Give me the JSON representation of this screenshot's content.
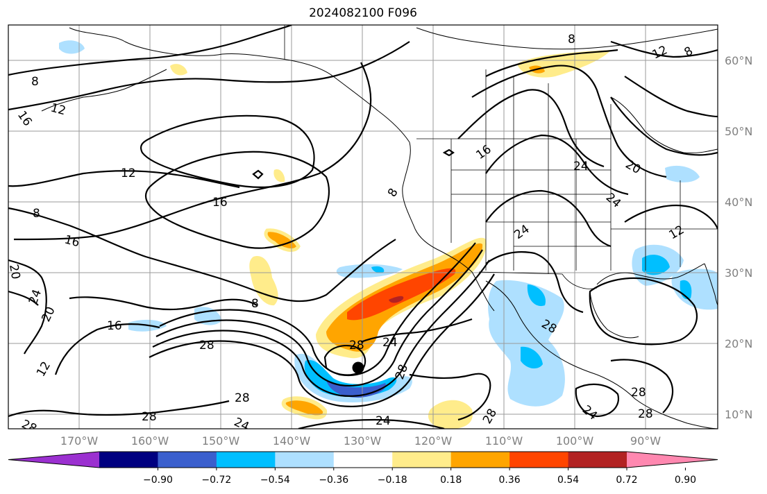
{
  "title": "2024082100 F096",
  "lat_labels": [
    "60°N",
    "50°N",
    "40°N",
    "30°N",
    "20°N",
    "10°N"
  ],
  "lon_labels": [
    "170°W",
    "160°W",
    "150°W",
    "140°W",
    "130°W",
    "120°W",
    "110°W",
    "100°W",
    "90°W"
  ],
  "colorbar": {
    "ticks": [
      "−0.90",
      "−0.72",
      "−0.54",
      "−0.36",
      "−0.18",
      "0.18",
      "0.36",
      "0.54",
      "0.72",
      "0.90"
    ],
    "colors": [
      "#9b30d0",
      "#000080",
      "#3a5fcd",
      "#00bfff",
      "#aee0ff",
      "#ffffff",
      "#ffec8b",
      "#ffa500",
      "#ff4500",
      "#b22222",
      "#ff88b0"
    ]
  },
  "contour_labels": [
    "8",
    "12",
    "16",
    "20",
    "24",
    "28"
  ],
  "storm_marker": "black-dot"
}
